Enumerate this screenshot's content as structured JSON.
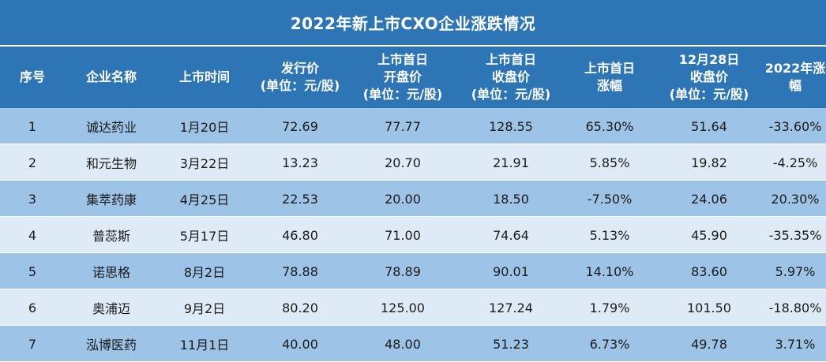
{
  "title": "2022年新上市CXO企业涨跌情况",
  "columns": [
    "序号",
    "企业名称",
    "上市时间",
    "发行价\n(单位：元/股)",
    "上市首日\n开盘价\n(单位：元/股)",
    "上市首日\n收盘价\n(单位：元/股)",
    "上市首日\n涨幅",
    "12月28日\n收盘价\n(单位：元/股)",
    "2022年涨幅"
  ],
  "rows": [
    [
      "1",
      "诚达药业",
      "1月20日",
      "72.69",
      "77.77",
      "128.55",
      "65.30%",
      "51.64",
      "-33.60%"
    ],
    [
      "2",
      "和元生物",
      "3月22日",
      "13.23",
      "20.70",
      "21.91",
      "5.85%",
      "19.82",
      "-4.25%"
    ],
    [
      "3",
      "集萃药康",
      "4月25日",
      "22.53",
      "20.00",
      "18.50",
      "-7.50%",
      "24.06",
      "20.30%"
    ],
    [
      "4",
      "普蕊斯",
      "5月17日",
      "46.80",
      "71.00",
      "74.64",
      "5.13%",
      "45.90",
      "-35.35%"
    ],
    [
      "5",
      "诺思格",
      "8月2日",
      "78.88",
      "78.89",
      "90.01",
      "14.10%",
      "83.60",
      "5.97%"
    ],
    [
      "6",
      "奥浦迈",
      "9月2日",
      "80.20",
      "125.00",
      "127.24",
      "1.79%",
      "101.50",
      "-18.80%"
    ],
    [
      "7",
      "泓博医药",
      "11月1日",
      "40.00",
      "48.00",
      "51.23",
      "6.73%",
      "49.78",
      "3.71%"
    ]
  ],
  "chart_data": {
    "type": "table",
    "title": "2022年新上市CXO企业涨跌情况",
    "columns": [
      "序号",
      "企业名称",
      "上市时间",
      "发行价(单位：元/股)",
      "上市首日开盘价(单位：元/股)",
      "上市首日收盘价(单位：元/股)",
      "上市首日涨幅",
      "12月28日收盘价(单位：元/股)",
      "2022年涨幅"
    ],
    "rows": [
      [
        1,
        "诚达药业",
        "1月20日",
        72.69,
        77.77,
        128.55,
        "65.30%",
        51.64,
        "-33.60%"
      ],
      [
        2,
        "和元生物",
        "3月22日",
        13.23,
        20.7,
        21.91,
        "5.85%",
        19.82,
        "-4.25%"
      ],
      [
        3,
        "集萃药康",
        "4月25日",
        22.53,
        20.0,
        18.5,
        "-7.50%",
        24.06,
        "20.30%"
      ],
      [
        4,
        "普蕊斯",
        "5月17日",
        46.8,
        71.0,
        74.64,
        "5.13%",
        45.9,
        "-35.35%"
      ],
      [
        5,
        "诺思格",
        "8月2日",
        78.88,
        78.89,
        90.01,
        "14.10%",
        83.6,
        "5.97%"
      ],
      [
        6,
        "奥浦迈",
        "9月2日",
        80.2,
        125.0,
        127.24,
        "1.79%",
        101.5,
        "-18.80%"
      ],
      [
        7,
        "泓博医药",
        "11月1日",
        40.0,
        48.0,
        51.23,
        "6.73%",
        49.78,
        "3.71%"
      ]
    ]
  },
  "colors": {
    "header_bg": "#2e75b6",
    "row_odd_bg": "#9dc3e6",
    "row_even_bg": "#deebf7",
    "header_text": "#ffffff"
  }
}
